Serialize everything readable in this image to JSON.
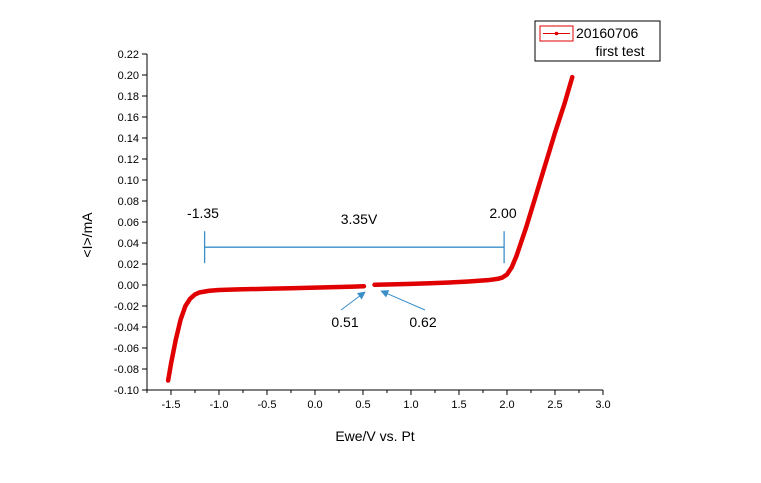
{
  "chart_data": {
    "type": "line",
    "xlabel": "Ewe/V vs. Pt",
    "ylabel": "<I>/mA",
    "xlim": [
      -1.75,
      3.0
    ],
    "ylim": [
      -0.1,
      0.22
    ],
    "x_ticks": [
      "-1.5",
      "-1.0",
      "-0.5",
      "0.0",
      "0.5",
      "1.0",
      "1.5",
      "2.0",
      "2.5",
      "3.0"
    ],
    "y_ticks": [
      "-0.10",
      "-0.08",
      "-0.06",
      "-0.04",
      "-0.02",
      "0.00",
      "0.02",
      "0.04",
      "0.06",
      "0.08",
      "0.10",
      "0.12",
      "0.14",
      "0.16",
      "0.18",
      "0.20",
      "0.22"
    ],
    "grid": false,
    "legend": {
      "placement": "top-right",
      "entries": [
        "20160706",
        "first test"
      ]
    },
    "series": [
      {
        "name": "20160706",
        "color": "#e00000",
        "segments": [
          [
            [
              -1.53,
              -0.091
            ],
            [
              -1.5,
              -0.075
            ],
            [
              -1.45,
              -0.052
            ],
            [
              -1.4,
              -0.033
            ],
            [
              -1.35,
              -0.02
            ],
            [
              -1.3,
              -0.013
            ],
            [
              -1.25,
              -0.009
            ],
            [
              -1.2,
              -0.007
            ],
            [
              -1.1,
              -0.0055
            ],
            [
              -1.0,
              -0.0048
            ],
            [
              -0.8,
              -0.0042
            ],
            [
              -0.5,
              -0.0036
            ],
            [
              -0.2,
              -0.003
            ],
            [
              0.0,
              -0.0025
            ],
            [
              0.2,
              -0.002
            ],
            [
              0.4,
              -0.0015
            ],
            [
              0.51,
              -0.0012
            ]
          ],
          [
            [
              0.62,
              0.0002
            ],
            [
              0.8,
              0.0006
            ],
            [
              1.0,
              0.0011
            ],
            [
              1.2,
              0.0017
            ],
            [
              1.4,
              0.0024
            ],
            [
              1.6,
              0.0033
            ],
            [
              1.8,
              0.0046
            ],
            [
              1.9,
              0.0058
            ],
            [
              1.95,
              0.007
            ],
            [
              2.0,
              0.01
            ],
            [
              2.05,
              0.017
            ],
            [
              2.1,
              0.028
            ],
            [
              2.2,
              0.055
            ],
            [
              2.3,
              0.085
            ],
            [
              2.4,
              0.115
            ],
            [
              2.5,
              0.145
            ],
            [
              2.6,
              0.173
            ],
            [
              2.68,
              0.198
            ]
          ]
        ]
      }
    ],
    "annotations": {
      "window": {
        "x_start": -1.15,
        "x_end": 1.97,
        "y": 0.036,
        "label": "3.35V",
        "color": "#3a8fc8"
      },
      "left_label": "-1.35",
      "right_label": "2.00",
      "gap_left": {
        "label": "0.51",
        "point": [
          0.53,
          -0.002
        ]
      },
      "gap_right": {
        "label": "0.62",
        "point": [
          0.68,
          -0.001
        ]
      }
    }
  }
}
